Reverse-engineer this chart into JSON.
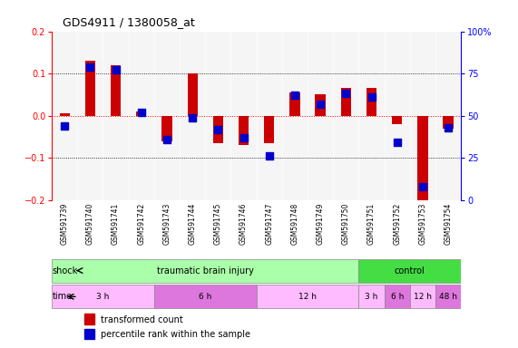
{
  "title": "GDS4911 / 1380058_at",
  "samples": [
    "GSM591739",
    "GSM591740",
    "GSM591741",
    "GSM591742",
    "GSM591743",
    "GSM591744",
    "GSM591745",
    "GSM591746",
    "GSM591747",
    "GSM591748",
    "GSM591749",
    "GSM591750",
    "GSM591751",
    "GSM591752",
    "GSM591753",
    "GSM591754"
  ],
  "transformed_count": [
    0.005,
    0.13,
    0.12,
    0.01,
    -0.06,
    0.1,
    -0.065,
    -0.07,
    -0.065,
    0.055,
    0.05,
    0.065,
    0.065,
    -0.02,
    -0.21,
    -0.03
  ],
  "percentile_rank": [
    44,
    79,
    77,
    52,
    36,
    49,
    42,
    37,
    26,
    62,
    57,
    63,
    61,
    34,
    8,
    43
  ],
  "ylim_left": [
    -0.2,
    0.2
  ],
  "ylim_right": [
    0,
    100
  ],
  "bar_color": "#cc0000",
  "dot_color": "#0000cc",
  "plot_bg": "#f5f5f5",
  "sample_bg": "#d8d8d8",
  "shock_tbi_color": "#aaffaa",
  "shock_ctrl_color": "#44dd44",
  "time_light": "#ffbbff",
  "time_dark": "#dd77dd",
  "tbi_n": 12,
  "ctrl_n": 4,
  "time_groups_tbi": [
    {
      "label": "3 h",
      "start": 0,
      "end": 4,
      "light": true
    },
    {
      "label": "6 h",
      "start": 4,
      "end": 8,
      "light": false
    },
    {
      "label": "12 h",
      "start": 8,
      "end": 12,
      "light": true
    },
    {
      "label": "48 h",
      "start": 12,
      "end": 16,
      "light": false
    }
  ],
  "time_groups_ctrl": [
    {
      "label": "3 h",
      "start": 12,
      "end": 13,
      "light": true
    },
    {
      "label": "6 h",
      "start": 13,
      "end": 14,
      "light": false
    },
    {
      "label": "12 h",
      "start": 14,
      "end": 15,
      "light": true
    },
    {
      "label": "48 h",
      "start": 15,
      "end": 16,
      "light": false
    }
  ]
}
